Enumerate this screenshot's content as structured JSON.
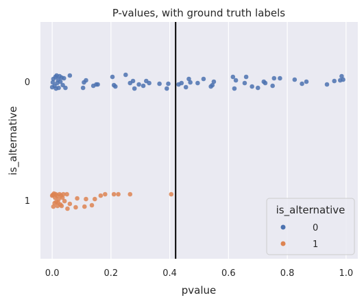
{
  "chart_data": {
    "type": "scatter",
    "title": "P-values, with ground truth labels",
    "xlabel": "pvalue",
    "ylabel": "is_alternative",
    "xlim": [
      -0.04,
      1.04
    ],
    "xticks": [
      "0.0",
      "0.2",
      "0.4",
      "0.6",
      "0.8",
      "1.0"
    ],
    "xtick_values": [
      0.0,
      0.2,
      0.4,
      0.6,
      0.8,
      1.0
    ],
    "yticks": [
      "0",
      "1"
    ],
    "grid": true,
    "threshold_line": 0.42,
    "legend": {
      "title": "is_alternative",
      "placement": "bottom-right"
    },
    "series": [
      {
        "name": "0",
        "category": 0,
        "color": "#4c72b0",
        "points": [
          [
            0.0,
            0.08
          ],
          [
            0.002,
            0.01
          ],
          [
            0.004,
            -0.04
          ],
          [
            0.008,
            0.06
          ],
          [
            0.011,
            -0.07
          ],
          [
            0.013,
            0.1
          ],
          [
            0.015,
            -0.09
          ],
          [
            0.017,
            0.02
          ],
          [
            0.02,
            -0.03
          ],
          [
            0.022,
            0.09
          ],
          [
            0.025,
            -0.08
          ],
          [
            0.028,
            0.0
          ],
          [
            0.032,
            -0.06
          ],
          [
            0.036,
            0.05
          ],
          [
            0.04,
            -0.05
          ],
          [
            0.045,
            0.09
          ],
          [
            0.06,
            -0.09
          ],
          [
            0.105,
            0.09
          ],
          [
            0.108,
            0.01
          ],
          [
            0.115,
            -0.02
          ],
          [
            0.14,
            0.06
          ],
          [
            0.15,
            0.04
          ],
          [
            0.155,
            0.04
          ],
          [
            0.205,
            -0.07
          ],
          [
            0.21,
            0.05
          ],
          [
            0.215,
            0.07
          ],
          [
            0.25,
            -0.1
          ],
          [
            0.265,
            0.02
          ],
          [
            0.275,
            -0.01
          ],
          [
            0.28,
            0.1
          ],
          [
            0.295,
            0.04
          ],
          [
            0.31,
            0.06
          ],
          [
            0.32,
            -0.01
          ],
          [
            0.33,
            0.02
          ],
          [
            0.365,
            0.03
          ],
          [
            0.39,
            0.1
          ],
          [
            0.395,
            0.03
          ],
          [
            0.43,
            0.04
          ],
          [
            0.44,
            0.02
          ],
          [
            0.455,
            0.08
          ],
          [
            0.465,
            -0.04
          ],
          [
            0.47,
            0.01
          ],
          [
            0.495,
            0.02
          ],
          [
            0.515,
            -0.04
          ],
          [
            0.54,
            0.07
          ],
          [
            0.545,
            0.05
          ],
          [
            0.55,
            0.0
          ],
          [
            0.615,
            -0.07
          ],
          [
            0.62,
            0.1
          ],
          [
            0.625,
            -0.02
          ],
          [
            0.655,
            0.02
          ],
          [
            0.66,
            -0.07
          ],
          [
            0.68,
            0.07
          ],
          [
            0.7,
            0.09
          ],
          [
            0.72,
            0.0
          ],
          [
            0.725,
            0.02
          ],
          [
            0.75,
            0.06
          ],
          [
            0.755,
            -0.05
          ],
          [
            0.775,
            -0.05
          ],
          [
            0.825,
            -0.03
          ],
          [
            0.85,
            0.03
          ],
          [
            0.865,
            0.0
          ],
          [
            0.935,
            0.04
          ],
          [
            0.96,
            -0.01
          ],
          [
            0.98,
            -0.02
          ],
          [
            0.985,
            -0.08
          ],
          [
            0.99,
            -0.03
          ]
        ]
      },
      {
        "name": "1",
        "category": 1,
        "color": "#dd8452",
        "points": [
          [
            0.0,
            -0.07
          ],
          [
            0.002,
            -0.08
          ],
          [
            0.004,
            0.09
          ],
          [
            0.006,
            -0.1
          ],
          [
            0.008,
            0.04
          ],
          [
            0.01,
            -0.04
          ],
          [
            0.012,
            -0.09
          ],
          [
            0.014,
            0.02
          ],
          [
            0.016,
            -0.07
          ],
          [
            0.018,
            0.08
          ],
          [
            0.02,
            0.03
          ],
          [
            0.022,
            -0.02
          ],
          [
            0.025,
            -0.09
          ],
          [
            0.028,
            0.06
          ],
          [
            0.03,
            -0.07
          ],
          [
            0.032,
            0.08
          ],
          [
            0.035,
            -0.04
          ],
          [
            0.038,
            -0.09
          ],
          [
            0.042,
            0.01
          ],
          [
            0.05,
            -0.09
          ],
          [
            0.052,
            0.12
          ],
          [
            0.06,
            0.05
          ],
          [
            0.08,
            0.1
          ],
          [
            0.085,
            -0.03
          ],
          [
            0.11,
            0.09
          ],
          [
            0.115,
            -0.02
          ],
          [
            0.135,
            0.07
          ],
          [
            0.145,
            -0.02
          ],
          [
            0.165,
            -0.07
          ],
          [
            0.18,
            -0.09
          ],
          [
            0.21,
            -0.09
          ],
          [
            0.225,
            -0.09
          ],
          [
            0.265,
            -0.09
          ],
          [
            0.405,
            -0.09
          ]
        ]
      }
    ]
  }
}
